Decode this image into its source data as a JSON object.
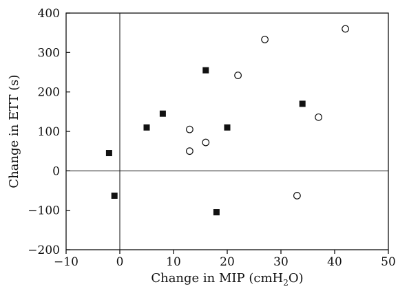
{
  "chart_data": {
    "type": "scatter",
    "title": "",
    "xlabel_main": "Change in MIP (cmH",
    "xlabel_sub": "2",
    "xlabel_end": "O)",
    "ylabel": "Change in ETT (s)",
    "xlim": [
      -10,
      50
    ],
    "ylim": [
      -200,
      400
    ],
    "xticks": [
      -10,
      0,
      10,
      20,
      30,
      40,
      50
    ],
    "yticks": [
      -200,
      -100,
      0,
      100,
      200,
      300,
      400
    ],
    "xtick_labels": [
      "−10",
      "0",
      "10",
      "20",
      "30",
      "40",
      "50"
    ],
    "ytick_labels": [
      "−200",
      "−100",
      "0",
      "100",
      "200",
      "300",
      "400"
    ],
    "reference_lines": {
      "x": 0,
      "y": 0
    },
    "grid": false,
    "series": [
      {
        "marker": "filled-square",
        "color": "#111111",
        "points": [
          {
            "x": -2,
            "y": 45
          },
          {
            "x": -1,
            "y": -63
          },
          {
            "x": 5,
            "y": 110
          },
          {
            "x": 8,
            "y": 145
          },
          {
            "x": 16,
            "y": 255
          },
          {
            "x": 18,
            "y": -105
          },
          {
            "x": 20,
            "y": 110
          },
          {
            "x": 34,
            "y": 170
          }
        ]
      },
      {
        "marker": "open-circle",
        "color": "#111111",
        "points": [
          {
            "x": 13,
            "y": 50
          },
          {
            "x": 13,
            "y": 105
          },
          {
            "x": 16,
            "y": 72
          },
          {
            "x": 22,
            "y": 242
          },
          {
            "x": 27,
            "y": 333
          },
          {
            "x": 33,
            "y": -63
          },
          {
            "x": 37,
            "y": 136
          },
          {
            "x": 42,
            "y": 360
          }
        ]
      }
    ]
  }
}
